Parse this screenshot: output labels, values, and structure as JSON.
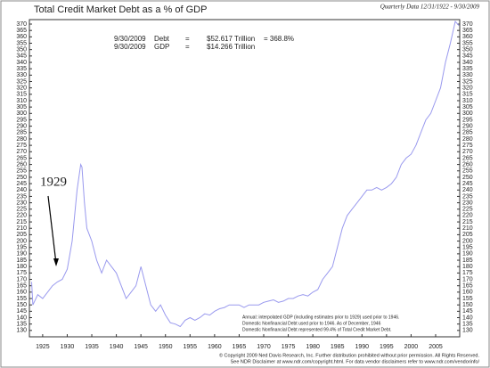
{
  "chart_data": {
    "type": "line",
    "title": "Total Credit Market Debt as a % of GDP",
    "subtitle": "Quarterly Data 12/31/1922 - 9/30/2009",
    "annotation_rows": [
      [
        "9/30/2009",
        "Debt",
        "=",
        "$52.617 Trillion",
        "= 368.8%"
      ],
      [
        "9/30/2009",
        "GDP",
        "=",
        "$14.266 Trillion"
      ]
    ],
    "callout": "1929",
    "notes": [
      "Annual: interpolated GDP (including estimates prior to 1929) used prior to 1946.",
      "Domestic Nonfinancial Debt used prior to 1946. As of December, 1946",
      "Domestic Nonfinancial Debt represented 99.4% of Total Credit Market Debt."
    ],
    "footer": [
      "© Copyright 2009 Ned Davis Research, Inc.  Further distribution prohibited without prior permission.  All Rights Reserved.",
      "See NDR Disclaimer at www.ndr.com/copyright.html.  For data vendor disclaimers refer to www.ndr.com/vendorinfo/"
    ],
    "x": [
      1922.75,
      1923,
      1924,
      1925,
      1926,
      1927,
      1928,
      1929,
      1930,
      1931,
      1932,
      1932.75,
      1933,
      1933.5,
      1934,
      1935,
      1936,
      1937,
      1938,
      1939,
      1940,
      1941,
      1942,
      1943,
      1944,
      1945,
      1946,
      1947,
      1948,
      1949,
      1950,
      1951,
      1952,
      1953,
      1954,
      1955,
      1956,
      1957,
      1958,
      1959,
      1960,
      1961,
      1962,
      1963,
      1964,
      1965,
      1966,
      1967,
      1968,
      1969,
      1970,
      1971,
      1972,
      1973,
      1974,
      1975,
      1976,
      1977,
      1978,
      1979,
      1980,
      1981,
      1982,
      1983,
      1984,
      1985,
      1986,
      1987,
      1988,
      1989,
      1990,
      1991,
      1992,
      1993,
      1994,
      1995,
      1996,
      1997,
      1998,
      1999,
      2000,
      2001,
      2002,
      2003,
      2004,
      2005,
      2006,
      2007,
      2008,
      2009,
      2009.75
    ],
    "series": [
      {
        "name": "Total Credit Market Debt as a % of GDP",
        "color": "#9999ee",
        "values": [
          168,
          150,
          158,
          155,
          160,
          165,
          168,
          170,
          178,
          200,
          240,
          260,
          258,
          230,
          210,
          200,
          185,
          175,
          185,
          180,
          175,
          165,
          155,
          160,
          165,
          180,
          165,
          150,
          145,
          150,
          142,
          136,
          135,
          133,
          138,
          140,
          138,
          140,
          143,
          142,
          145,
          147,
          148,
          150,
          150,
          150,
          148,
          150,
          150,
          150,
          152,
          153,
          154,
          152,
          153,
          155,
          155,
          157,
          158,
          157,
          160,
          162,
          170,
          175,
          180,
          195,
          210,
          220,
          225,
          230,
          235,
          240,
          240,
          242,
          240,
          242,
          245,
          250,
          260,
          265,
          268,
          275,
          285,
          295,
          300,
          310,
          320,
          340,
          355,
          372,
          368.8
        ]
      }
    ],
    "xlim": [
      1922.3,
      2009.9
    ],
    "xticks": [
      1925,
      1930,
      1935,
      1940,
      1945,
      1950,
      1955,
      1960,
      1965,
      1970,
      1975,
      1980,
      1985,
      1990,
      1995,
      2000,
      2005
    ],
    "ylim": [
      125,
      373.5
    ],
    "yticks": [
      130,
      135,
      140,
      145,
      150,
      155,
      160,
      165,
      170,
      175,
      180,
      185,
      190,
      195,
      200,
      205,
      210,
      215,
      220,
      225,
      230,
      235,
      240,
      245,
      250,
      255,
      260,
      265,
      270,
      275,
      280,
      285,
      290,
      295,
      300,
      305,
      310,
      315,
      320,
      325,
      330,
      335,
      340,
      345,
      350,
      355,
      360,
      365,
      370
    ]
  }
}
